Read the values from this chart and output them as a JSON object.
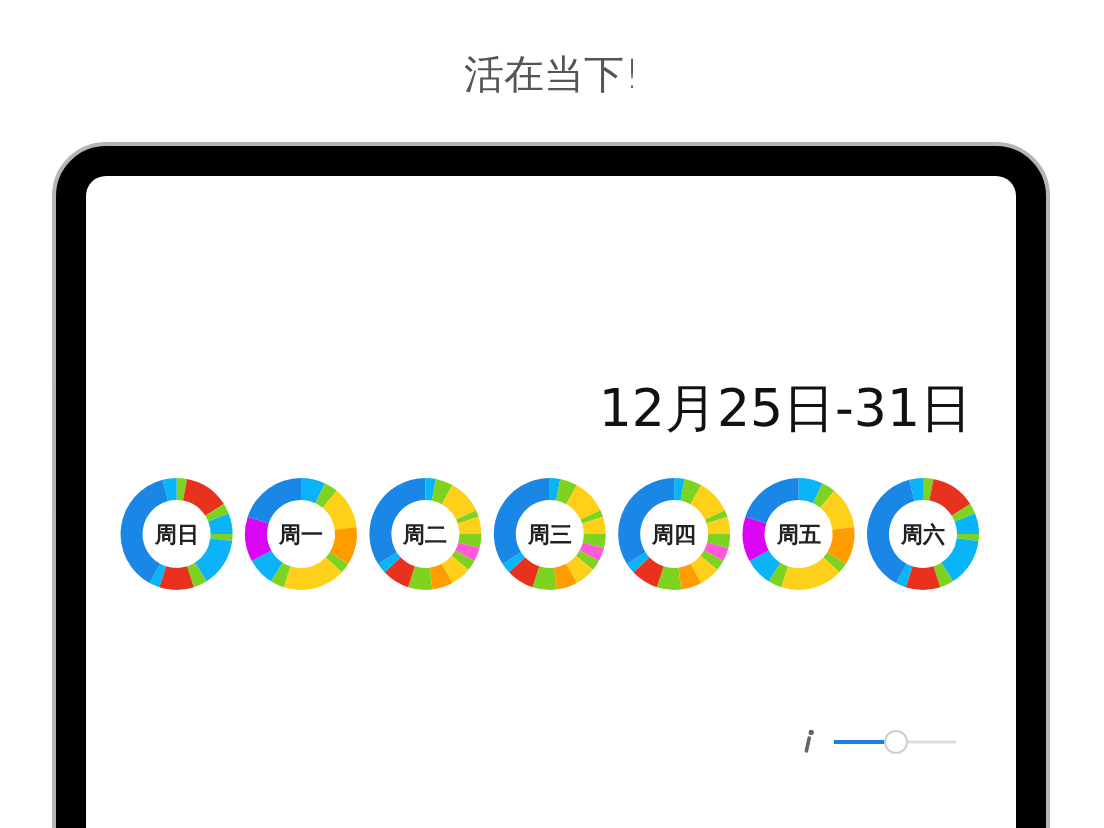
{
  "chart_data": [
    {
      "type": "other",
      "title": "活在当下!",
      "subtitle": "12月25日-31日"
    },
    {
      "type": "donut",
      "title": "周日",
      "categories": [
        null,
        null,
        null,
        null,
        null,
        null,
        null,
        null,
        null,
        null,
        null
      ],
      "values": [
        3,
        13,
        3,
        6,
        2,
        14,
        4,
        10,
        3,
        38,
        4
      ],
      "colors": [
        "#7ed321",
        "#e8321e",
        "#7ed321",
        "#0ab4f6",
        "#7ed321",
        "#0ab4f6",
        "#7ed321",
        "#e8321e",
        "#0ab4f6",
        "#1a86e6",
        "#0ab4f6"
      ]
    },
    {
      "type": "donut",
      "title": "周一",
      "categories": [
        null,
        null,
        null,
        null,
        null,
        null,
        null,
        null,
        null,
        null
      ],
      "values": [
        7,
        4,
        12,
        11,
        3,
        18,
        4,
        8,
        13,
        20
      ],
      "colors": [
        "#0ab4f6",
        "#7ed321",
        "#ffd01a",
        "#ff9d00",
        "#7ed321",
        "#ffd01a",
        "#7ed321",
        "#0ab4f6",
        "#d905f5",
        "#1a86e6"
      ]
    },
    {
      "type": "donut",
      "title": "周二",
      "categories": [
        null,
        null,
        null,
        null,
        null,
        null,
        null,
        null,
        null,
        null,
        null,
        null,
        null,
        null
      ],
      "values": [
        3,
        5,
        10,
        2,
        5,
        4,
        4,
        3,
        6,
        6,
        7,
        8,
        3,
        34
      ],
      "colors": [
        "#0ab4f6",
        "#7ed321",
        "#ffd01a",
        "#7ed321",
        "#ffd01a",
        "#7ed321",
        "#ff5bd8",
        "#7ed321",
        "#ffd01a",
        "#ff9d00",
        "#7ed321",
        "#e8321e",
        "#0ab4f6",
        "#1a86e6"
      ]
    },
    {
      "type": "donut",
      "title": "周三",
      "categories": [
        null,
        null,
        null,
        null,
        null,
        null,
        null,
        null,
        null,
        null,
        null,
        null,
        null,
        null
      ],
      "values": [
        3,
        5,
        10,
        2,
        5,
        4,
        4,
        3,
        6,
        6,
        7,
        8,
        3,
        34
      ],
      "colors": [
        "#0ab4f6",
        "#7ed321",
        "#ffd01a",
        "#7ed321",
        "#ffd01a",
        "#7ed321",
        "#ff5bd8",
        "#7ed321",
        "#ffd01a",
        "#ff9d00",
        "#7ed321",
        "#e8321e",
        "#0ab4f6",
        "#1a86e6"
      ]
    },
    {
      "type": "donut",
      "title": "周四",
      "categories": [
        null,
        null,
        null,
        null,
        null,
        null,
        null,
        null,
        null,
        null,
        null,
        null,
        null,
        null
      ],
      "values": [
        3,
        5,
        10,
        2,
        5,
        4,
        4,
        3,
        6,
        6,
        7,
        8,
        3,
        34
      ],
      "colors": [
        "#0ab4f6",
        "#7ed321",
        "#ffd01a",
        "#7ed321",
        "#ffd01a",
        "#7ed321",
        "#ff5bd8",
        "#7ed321",
        "#ffd01a",
        "#ff9d00",
        "#7ed321",
        "#e8321e",
        "#0ab4f6",
        "#1a86e6"
      ]
    },
    {
      "type": "donut",
      "title": "周五",
      "categories": [
        null,
        null,
        null,
        null,
        null,
        null,
        null,
        null,
        null,
        null
      ],
      "values": [
        7,
        4,
        12,
        11,
        3,
        18,
        4,
        8,
        13,
        20
      ],
      "colors": [
        "#0ab4f6",
        "#7ed321",
        "#ffd01a",
        "#ff9d00",
        "#7ed321",
        "#ffd01a",
        "#7ed321",
        "#0ab4f6",
        "#d905f5",
        "#1a86e6"
      ]
    },
    {
      "type": "donut",
      "title": "周六",
      "categories": [
        null,
        null,
        null,
        null,
        null,
        null,
        null,
        null,
        null,
        null,
        null
      ],
      "values": [
        3,
        13,
        3,
        6,
        2,
        14,
        4,
        10,
        3,
        38,
        4
      ],
      "colors": [
        "#7ed321",
        "#e8321e",
        "#7ed321",
        "#0ab4f6",
        "#7ed321",
        "#0ab4f6",
        "#7ed321",
        "#e8321e",
        "#0ab4f6",
        "#1a86e6",
        "#0ab4f6"
      ]
    }
  ]
}
